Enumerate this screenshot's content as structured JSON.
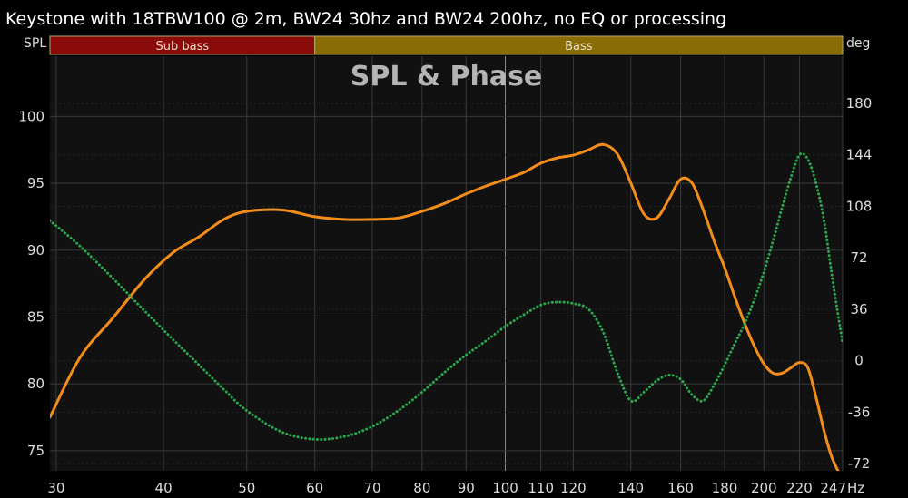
{
  "header": {
    "title": "Keystone with 18TBW100 @ 2m, BW24 30hz and BW24 200hz, no EQ or processing"
  },
  "labels": {
    "left_unit": "SPL",
    "right_unit": "deg",
    "plot_title": "SPL & Phase",
    "x_unit": "Hz"
  },
  "bands": [
    {
      "label": "Sub bass",
      "from": 20,
      "to": 60,
      "color": "#8b0a0a"
    },
    {
      "label": "Bass",
      "from": 60,
      "to": 250,
      "color": "#8a6c06"
    }
  ],
  "colors": {
    "spl": "#f28c1b",
    "phase": "#2aa64c",
    "grid": "#3a3a3a",
    "background": "#111111"
  },
  "chart_data": {
    "type": "line",
    "title": "SPL & Phase",
    "x_scale": "log",
    "xlim": [
      29.5,
      247
    ],
    "ylim_left": [
      73.5,
      104.5
    ],
    "ylim_right": [
      -77,
      213
    ],
    "x_ticks": [
      30,
      40,
      50,
      60,
      70,
      80,
      90,
      100,
      110,
      120,
      140,
      160,
      180,
      200,
      220,
      247
    ],
    "x_tick_labels": [
      "30",
      "40",
      "50",
      "60",
      "70",
      "80",
      "90",
      "100",
      "110",
      "120",
      "140",
      "160",
      "180",
      "200",
      "220",
      "247"
    ],
    "y_ticks_left": [
      75,
      80,
      85,
      90,
      95,
      100
    ],
    "y_ticks_right": [
      -72,
      -36,
      0,
      36,
      72,
      108,
      144,
      180
    ],
    "grid": true,
    "series": [
      {
        "axis": "left",
        "style": "solid",
        "x": [
          29.5,
          32,
          35,
          38,
          41,
          44,
          47,
          50,
          55,
          60,
          65,
          70,
          75,
          80,
          85,
          90,
          95,
          100,
          105,
          110,
          115,
          120,
          125,
          130,
          135,
          140,
          145,
          150,
          155,
          160,
          165,
          170,
          175,
          180,
          185,
          190,
          195,
          200,
          205,
          210,
          215,
          220,
          225,
          230,
          235,
          240,
          247
        ],
        "values": [
          77.5,
          82.0,
          85.0,
          87.8,
          89.8,
          91.0,
          92.3,
          92.9,
          93.0,
          92.5,
          92.3,
          92.3,
          92.4,
          92.9,
          93.5,
          94.2,
          94.8,
          95.3,
          95.8,
          96.5,
          96.9,
          97.1,
          97.5,
          97.9,
          97.2,
          95.0,
          92.7,
          92.4,
          93.8,
          95.3,
          95.0,
          93.0,
          90.7,
          88.7,
          86.5,
          84.5,
          82.8,
          81.5,
          80.8,
          80.8,
          81.2,
          81.6,
          81.2,
          79.0,
          76.5,
          74.5,
          72.8
        ]
      },
      {
        "axis": "right",
        "style": "dotted",
        "x": [
          29.5,
          32,
          35,
          38,
          41,
          44,
          47,
          50,
          55,
          60,
          65,
          70,
          75,
          80,
          85,
          90,
          95,
          100,
          105,
          110,
          115,
          120,
          125,
          130,
          135,
          140,
          145,
          150,
          155,
          160,
          165,
          170,
          175,
          180,
          185,
          190,
          195,
          200,
          205,
          210,
          215,
          220,
          225,
          230,
          235,
          240,
          247
        ],
        "values": [
          98,
          80,
          57,
          35,
          15,
          -3,
          -20,
          -35,
          -50,
          -55,
          -53,
          -46,
          -35,
          -22,
          -8,
          4,
          14,
          24,
          32,
          39,
          41,
          40,
          36,
          20,
          -8,
          -28,
          -22,
          -14,
          -10,
          -13,
          -24,
          -28,
          -17,
          -3,
          12,
          26,
          43,
          62,
          84,
          107,
          128,
          144,
          141,
          124,
          98,
          60,
          12
        ]
      }
    ]
  }
}
